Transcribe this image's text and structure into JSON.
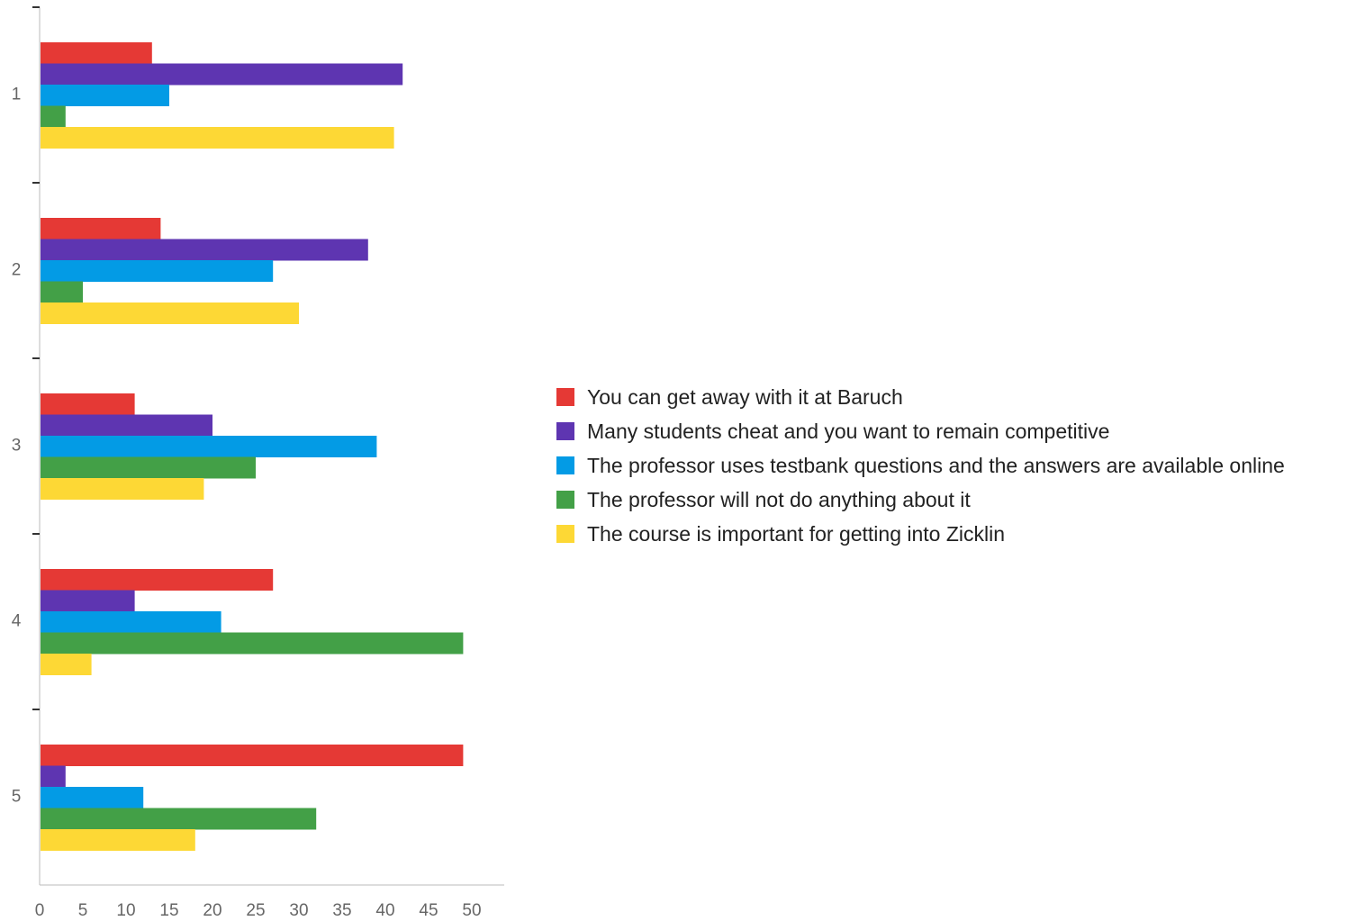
{
  "chart_data": {
    "type": "bar",
    "orientation": "horizontal",
    "categories": [
      "1",
      "2",
      "3",
      "4",
      "5"
    ],
    "series": [
      {
        "name": "You can get away with it at Baruch",
        "color": "#e53935",
        "values": [
          13,
          14,
          11,
          27,
          49
        ]
      },
      {
        "name": "Many students cheat and you want to remain competitive",
        "color": "#5e35b1",
        "values": [
          42,
          38,
          20,
          11,
          3
        ]
      },
      {
        "name": "The professor uses testbank questions and the answers are available online",
        "color": "#039be5",
        "values": [
          15,
          27,
          39,
          21,
          12
        ]
      },
      {
        "name": "The professor will not do anything about it",
        "color": "#43a047",
        "values": [
          3,
          5,
          25,
          49,
          32
        ]
      },
      {
        "name": "The course is important for getting into Zicklin",
        "color": "#fdd835",
        "values": [
          41,
          30,
          19,
          6,
          18
        ]
      }
    ],
    "xlim": [
      0,
      54
    ],
    "xticks": [
      0,
      5,
      10,
      15,
      20,
      25,
      30,
      35,
      40,
      45,
      50
    ],
    "title": "",
    "xlabel": "",
    "ylabel": "",
    "grid": false,
    "legend_position": "right"
  }
}
